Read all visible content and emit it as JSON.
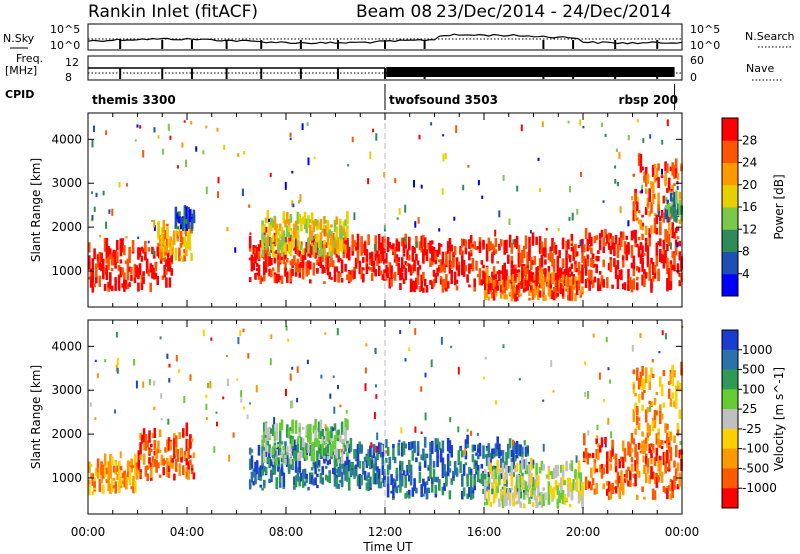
{
  "header": {
    "station": "Rankin Inlet (fitACF)",
    "beam": "Beam 08",
    "dates": "23/Dec/2014 - 24/Dec/2014"
  },
  "top_panel": {
    "nsky_label": "N.Sky",
    "nsearch_label": "N.Search",
    "freq_label": "Freq.",
    "freq_unit": "[MHz]",
    "nave_label": "Nave",
    "cpid_label": "CPID",
    "noise_ticks": [
      "10^5",
      "10^0"
    ],
    "freq_ticks": [
      "12",
      "8"
    ],
    "nave_ticks": [
      "60",
      "0"
    ]
  },
  "cpid": [
    {
      "label": "themis 3300",
      "start": 0,
      "end": 12
    },
    {
      "label": "twofsound 3503",
      "start": 12,
      "end": 23.7
    },
    {
      "label": "rbsp 200",
      "start": 23.7,
      "end": 24
    }
  ],
  "colors": {
    "power": [
      "#0000ff",
      "#1e4fb4",
      "#2e8b57",
      "#7cc84a",
      "#e6d000",
      "#ff9900",
      "#ff5500",
      "#ff0000"
    ],
    "velocity": [
      "#1a3ccf",
      "#2a72a8",
      "#2f9a55",
      "#66cc33",
      "#c0c0c0",
      "#ffd000",
      "#ff9900",
      "#ff5a00",
      "#ff0000"
    ]
  },
  "chart_data": [
    {
      "type": "heatmap",
      "name": "power",
      "xlabel": "Time UT",
      "ylabel": "Slant Range [km]",
      "xlim": [
        0,
        24
      ],
      "ylim": [
        180,
        4600
      ],
      "y_ticks": [
        1000,
        2000,
        3000,
        4000
      ],
      "colorbar_label": "Power [dB]",
      "colorbar_ticks": [
        "4",
        "8",
        "12",
        "16",
        "20",
        "24",
        "28"
      ],
      "regions": [
        {
          "t0": 0.0,
          "t1": 3.4,
          "r0": 500,
          "r1": 1500,
          "level": 7
        },
        {
          "t0": 2.8,
          "t1": 4.2,
          "r0": 1200,
          "r1": 1900,
          "level": 5
        },
        {
          "t0": 3.5,
          "t1": 4.3,
          "r0": 1900,
          "r1": 2200,
          "level": 1
        },
        {
          "t0": 6.5,
          "t1": 12.0,
          "r0": 700,
          "r1": 1600,
          "level": 7
        },
        {
          "t0": 7.0,
          "t1": 10.5,
          "r0": 1300,
          "r1": 2100,
          "level": 4
        },
        {
          "t0": 12.0,
          "t1": 20.0,
          "r0": 500,
          "r1": 1600,
          "level": 7
        },
        {
          "t0": 16.0,
          "t1": 20.0,
          "r0": 300,
          "r1": 800,
          "level": 6
        },
        {
          "t0": 20.0,
          "t1": 24.0,
          "r0": 500,
          "r1": 1800,
          "level": 7
        },
        {
          "t0": 22.0,
          "t1": 24.0,
          "r0": 1800,
          "r1": 3400,
          "level": 6
        },
        {
          "t0": 23.3,
          "t1": 24.0,
          "r0": 2100,
          "r1": 2600,
          "level": 2
        }
      ]
    },
    {
      "type": "heatmap",
      "name": "velocity",
      "xlabel": "Time UT",
      "ylabel": "Slant Range [km]",
      "xlim": [
        0,
        24
      ],
      "ylim": [
        180,
        4600
      ],
      "x_ticks": [
        "00:00",
        "04:00",
        "08:00",
        "12:00",
        "16:00",
        "20:00",
        "00:00"
      ],
      "y_ticks": [
        1000,
        2000,
        3000,
        4000
      ],
      "colorbar_label": "Velocity [m s^-1]",
      "colorbar_ticks": [
        "1000",
        "500",
        "100",
        "25",
        "-25",
        "-100",
        "-500",
        "-1000"
      ],
      "regions": [
        {
          "t0": 0.0,
          "t1": 2.0,
          "r0": 600,
          "r1": 1300,
          "level": 6
        },
        {
          "t0": 2.0,
          "t1": 4.3,
          "r0": 900,
          "r1": 2000,
          "level": 7
        },
        {
          "t0": 6.5,
          "t1": 12.0,
          "r0": 700,
          "r1": 1600,
          "level": 1
        },
        {
          "t0": 7.0,
          "t1": 10.5,
          "r0": 1300,
          "r1": 2100,
          "level": 3
        },
        {
          "t0": 12.0,
          "t1": 18.0,
          "r0": 500,
          "r1": 1700,
          "level": 1
        },
        {
          "t0": 16.0,
          "t1": 20.0,
          "r0": 300,
          "r1": 1200,
          "level": 4
        },
        {
          "t0": 20.0,
          "t1": 24.0,
          "r0": 500,
          "r1": 1800,
          "level": 7
        },
        {
          "t0": 22.0,
          "t1": 24.0,
          "r0": 1800,
          "r1": 3400,
          "level": 6
        }
      ]
    }
  ]
}
